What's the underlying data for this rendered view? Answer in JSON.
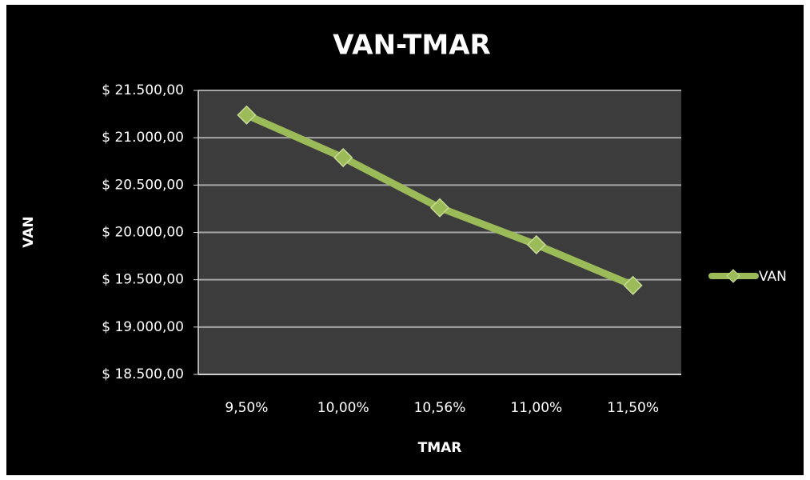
{
  "chart_data": {
    "type": "line",
    "title": "VAN-TMAR",
    "x_label": "TMAR",
    "y_label": "VAN",
    "categories": [
      "9,50%",
      "10,00%",
      "10,56%",
      "11,00%",
      "11,50%"
    ],
    "series": [
      {
        "name": "VAN",
        "color": "#9bbb59",
        "values": [
          21240,
          20790,
          20260,
          19870,
          19440
        ]
      }
    ],
    "ylim": [
      18500,
      21500
    ],
    "yticks": [
      {
        "value": 18500,
        "label": "$ 18.500,00"
      },
      {
        "value": 19000,
        "label": "$ 19.000,00"
      },
      {
        "value": 19500,
        "label": "$ 19.500,00"
      },
      {
        "value": 20000,
        "label": "$ 20.000,00"
      },
      {
        "value": 20500,
        "label": "$ 20.500,00"
      },
      {
        "value": 21000,
        "label": "$ 21.000,00"
      },
      {
        "value": 21500,
        "label": "$ 21.500,00"
      }
    ],
    "grid": true,
    "legend": "right"
  }
}
